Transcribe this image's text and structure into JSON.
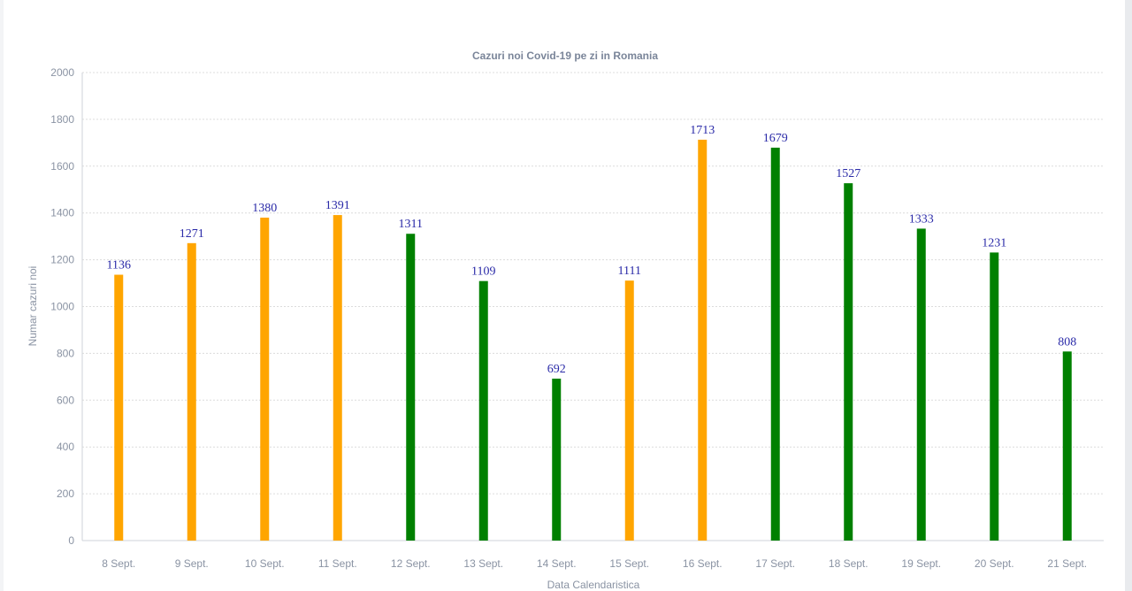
{
  "chart_data": {
    "type": "bar",
    "title": "Cazuri noi Covid-19 pe zi in Romania",
    "xlabel": "Data Calendaristica",
    "ylabel": "Numar cazuri noi",
    "ylim": [
      0,
      2000
    ],
    "yticks": [
      0,
      200,
      400,
      600,
      800,
      1000,
      1200,
      1400,
      1600,
      1800,
      2000
    ],
    "grid": true,
    "categories": [
      "8 Sept.",
      "9 Sept.",
      "10 Sept.",
      "11 Sept.",
      "12 Sept.",
      "13 Sept.",
      "14 Sept.",
      "15 Sept.",
      "16 Sept.",
      "17 Sept.",
      "18 Sept.",
      "19 Sept.",
      "20 Sept.",
      "21 Sept."
    ],
    "values": [
      1136,
      1271,
      1380,
      1391,
      1311,
      1109,
      692,
      1111,
      1713,
      1679,
      1527,
      1333,
      1231,
      808
    ],
    "colors": [
      "#ffa500",
      "#ffa500",
      "#ffa500",
      "#ffa500",
      "#008000",
      "#008000",
      "#008000",
      "#ffa500",
      "#ffa500",
      "#008000",
      "#008000",
      "#008000",
      "#008000",
      "#008000"
    ]
  }
}
